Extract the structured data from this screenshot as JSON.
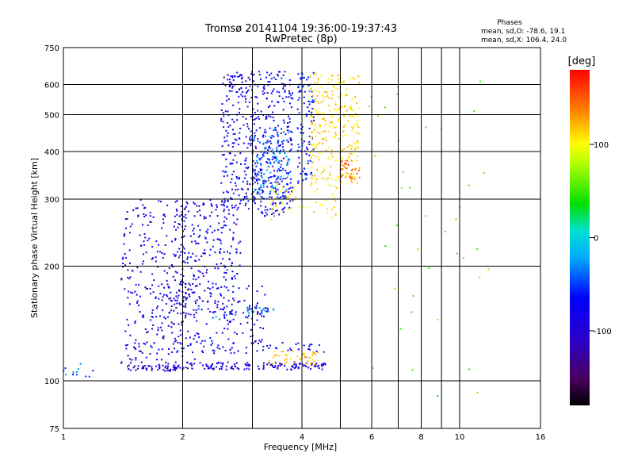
{
  "chart_data": {
    "type": "scatter",
    "title": "Tromsø 20141104 19:36:00-19:37:43",
    "subtitle": "RwPretec (8p)",
    "xlabel": "Frequency [MHz]",
    "ylabel": "Stationary phase Virtual Height [km]",
    "x_scale": "log",
    "y_scale": "log",
    "xlim": [
      1,
      16
    ],
    "ylim": [
      75,
      750
    ],
    "x_ticks": [
      1,
      2,
      4,
      6,
      8,
      10,
      16
    ],
    "y_ticks": [
      75,
      100,
      200,
      300,
      400,
      500,
      600,
      750
    ],
    "grid": true,
    "stats": {
      "heading": "Phases",
      "o_mode": "mean, sd,O: -78.6, 19.1",
      "x_mode": "mean, sd,X: 106.4, 24.0"
    },
    "colorbar": {
      "label": "[deg]",
      "range": [
        -180,
        180
      ],
      "ticks": [
        {
          "value": 100,
          "label": "100"
        },
        {
          "value": 0,
          "label": "0"
        },
        {
          "value": -100,
          "label": "-100"
        }
      ],
      "colormap": "rainbow (black-purple-blue-cyan-green-yellow-orange-red)"
    },
    "series": [
      {
        "description": "ionogram echoes, color = phase [deg]",
        "clusters": [
          {
            "f_range": [
              1.9,
              4.6
            ],
            "h_range": [
              107,
              112
            ],
            "phase": -110,
            "n": 140
          },
          {
            "f_range": [
              1.45,
              1.95
            ],
            "h_range": [
              106,
              110
            ],
            "phase": -115,
            "n": 50
          },
          {
            "f_range": [
              3.3,
              4.4
            ],
            "h_range": [
              110,
              120
            ],
            "phase": 115,
            "n": 45
          },
          {
            "f_range": [
              1.4,
              2.2
            ],
            "h_range": [
              110,
              300
            ],
            "phase": -110,
            "n": 260
          },
          {
            "f_range": [
              1.9,
              2.8
            ],
            "h_range": [
              150,
              300
            ],
            "phase": -105,
            "n": 260
          },
          {
            "f_range": [
              2.5,
              3.8
            ],
            "h_range": [
              270,
              650
            ],
            "phase": -105,
            "n": 500
          },
          {
            "f_range": [
              3.0,
              3.7
            ],
            "h_range": [
              300,
              460
            ],
            "phase": -75,
            "n": 140
          },
          {
            "f_range": [
              3.9,
              4.3
            ],
            "h_range": [
              330,
              650
            ],
            "phase": -90,
            "n": 100
          },
          {
            "f_range": [
              4.2,
              5.6
            ],
            "h_range": [
              330,
              650
            ],
            "phase": 110,
            "n": 260
          },
          {
            "f_range": [
              3.3,
              4.9
            ],
            "h_range": [
              265,
              340
            ],
            "phase": 105,
            "n": 60
          },
          {
            "f_range": [
              5.0,
              5.6
            ],
            "h_range": [
              340,
              380
            ],
            "phase": 145,
            "n": 30
          },
          {
            "f_range": [
              2.9,
              3.4
            ],
            "h_range": [
              150,
              156
            ],
            "phase": -70,
            "n": 25
          },
          {
            "f_range": [
              2.2,
              3.0
            ],
            "h_range": [
              145,
              152
            ],
            "phase": -85,
            "n": 15
          },
          {
            "f_range": [
              1.0,
              1.2
            ],
            "h_range": [
              102,
              112
            ],
            "phase": -75,
            "n": 12
          },
          {
            "f_range": [
              1.4,
              4.6
            ],
            "h_range": [
              118,
              126
            ],
            "phase": -105,
            "n": 80
          },
          {
            "f_range": [
              1.6,
              3.3
            ],
            "h_range": [
              126,
              180
            ],
            "phase": -110,
            "n": 120
          },
          {
            "f_range": [
              5.8,
              12
            ],
            "h_range": [
              90,
              650
            ],
            "phase": 30,
            "n": 40
          }
        ]
      }
    ]
  }
}
